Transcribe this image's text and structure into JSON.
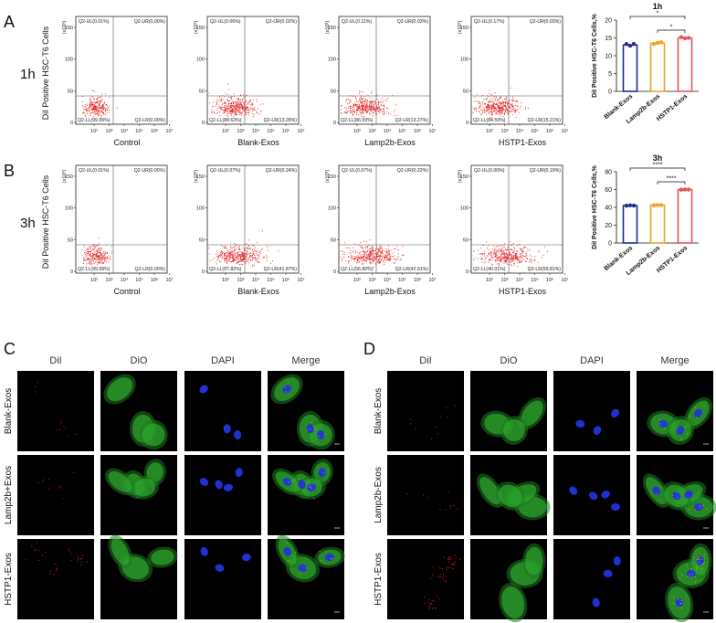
{
  "figure": {
    "panels": {
      "A": "A",
      "B": "B",
      "C": "C",
      "D": "D"
    },
    "flow_rows": [
      {
        "panel": "A",
        "time_label": "1h",
        "y_axis_label": "DiI Positive HSC-T6 Cells",
        "plots": [
          {
            "name": "Control",
            "UL": "Q2-UL(0.01%)",
            "UR": "Q2-UR(0.00%)",
            "LL": "Q2-LL(99.99%)",
            "LR": "Q2-LR(0.00%)"
          },
          {
            "name": "Blank-Exos",
            "UL": "Q2-UL(0.06%)",
            "UR": "Q2-UR(0.02%)",
            "LL": "Q2-LL(86.63%)",
            "LR": "Q2-LR(13.28%)"
          },
          {
            "name": "Lamp2b-Exos",
            "UL": "Q2-UL(0.11%)",
            "UR": "Q2-UR(0.03%)",
            "LL": "Q2-LL(86.59%)",
            "LR": "Q2-LR(13.27%)"
          },
          {
            "name": "HSTP1-Exos",
            "UL": "Q2-UL(0.17%)",
            "UR": "Q2-UR(0.03%)",
            "LL": "Q2-LL(84.59%)",
            "LR": "Q2-LR(15.21%)"
          }
        ]
      },
      {
        "panel": "B",
        "time_label": "3h",
        "y_axis_label": "DiI Positive HSC-T6 Cells",
        "plots": [
          {
            "name": "Control",
            "UL": "Q2-UL(0.01%)",
            "UR": "Q2-UR(0.00%)",
            "LL": "Q2-LL(99.99%)",
            "LR": "Q2-LR(0.00%)"
          },
          {
            "name": "Blank-Exos",
            "UL": "Q2-UL(0.07%)",
            "UR": "Q2-UR(0.24%)",
            "LL": "Q2-LL(57.82%)",
            "LR": "Q2-LR(41.87%)"
          },
          {
            "name": "Lamp2b-Exos",
            "UL": "Q2-UL(0.07%)",
            "UR": "Q2-UR(0.22%)",
            "LL": "Q2-LL(56.80%)",
            "LR": "Q2-LR(42.91%)"
          },
          {
            "name": "HSTP1-Exos",
            "UL": "Q2-UL(0.00%)",
            "UR": "Q2-UR(0.19%)",
            "LL": "Q2-LL(40.01%)",
            "LR": "Q2-LR(59.81%)"
          }
        ]
      }
    ],
    "flow_axis": {
      "y_ticks": [
        "150",
        "100",
        "50",
        "0"
      ],
      "y_exp": "(x10³)",
      "x_ticks": [
        "10²",
        "10³",
        "10⁴",
        "10⁵",
        "10⁶",
        "10⁷"
      ]
    },
    "micro_panels": [
      {
        "letter": "C",
        "headers": [
          "DiI",
          "DiO",
          "DAPI",
          "Merge"
        ],
        "rows": [
          "Blank-Exos",
          "Lamp2b+Exos",
          "HSTP1-Exos"
        ]
      },
      {
        "letter": "D",
        "headers": [
          "DiI",
          "DiO",
          "DAPI",
          "Merge"
        ],
        "rows": [
          "Blank-Exos",
          "Lamp2b-Exos",
          "HSTP1-Exos"
        ]
      }
    ]
  },
  "chart_data": [
    {
      "type": "bar",
      "title": "1h",
      "ylabel": "DiI Positive HSC-T6 Cells,%",
      "categories": [
        "Blank-Exos",
        "Lamp2b-Exos",
        "HSTP1-Exos"
      ],
      "values": [
        13.0,
        13.5,
        15.0
      ],
      "points": [
        [
          13.3,
          12.8,
          13.3
        ],
        [
          13.3,
          13.6,
          13.8
        ],
        [
          15.2,
          14.9,
          15.0
        ]
      ],
      "ylim": [
        0,
        20
      ],
      "yticks": [
        0,
        5,
        10,
        15,
        20
      ],
      "colors": [
        "#1f2f8c",
        "#f5a123",
        "#e2575b"
      ],
      "significance": [
        {
          "from": 0,
          "to": 2,
          "label": "*"
        },
        {
          "from": 1,
          "to": 2,
          "label": "*"
        }
      ]
    },
    {
      "type": "bar",
      "title": "3h",
      "ylabel": "DiI Positive HSC-T6 Cells,%",
      "categories": [
        "Blank-Exos",
        "Lamp2b-Exos",
        "HSTP1-Exos"
      ],
      "values": [
        42,
        42.5,
        60
      ],
      "points": [
        [
          41.8,
          42.2,
          42.0
        ],
        [
          42.3,
          42.6,
          42.5
        ],
        [
          59.8,
          60.1,
          60.0
        ]
      ],
      "ylim": [
        0,
        80
      ],
      "yticks": [
        0,
        20,
        40,
        60,
        80
      ],
      "colors": [
        "#1f2f8c",
        "#f5a123",
        "#e2575b"
      ],
      "significance": [
        {
          "from": 0,
          "to": 2,
          "label": "****"
        },
        {
          "from": 1,
          "to": 2,
          "label": "****"
        }
      ]
    }
  ]
}
